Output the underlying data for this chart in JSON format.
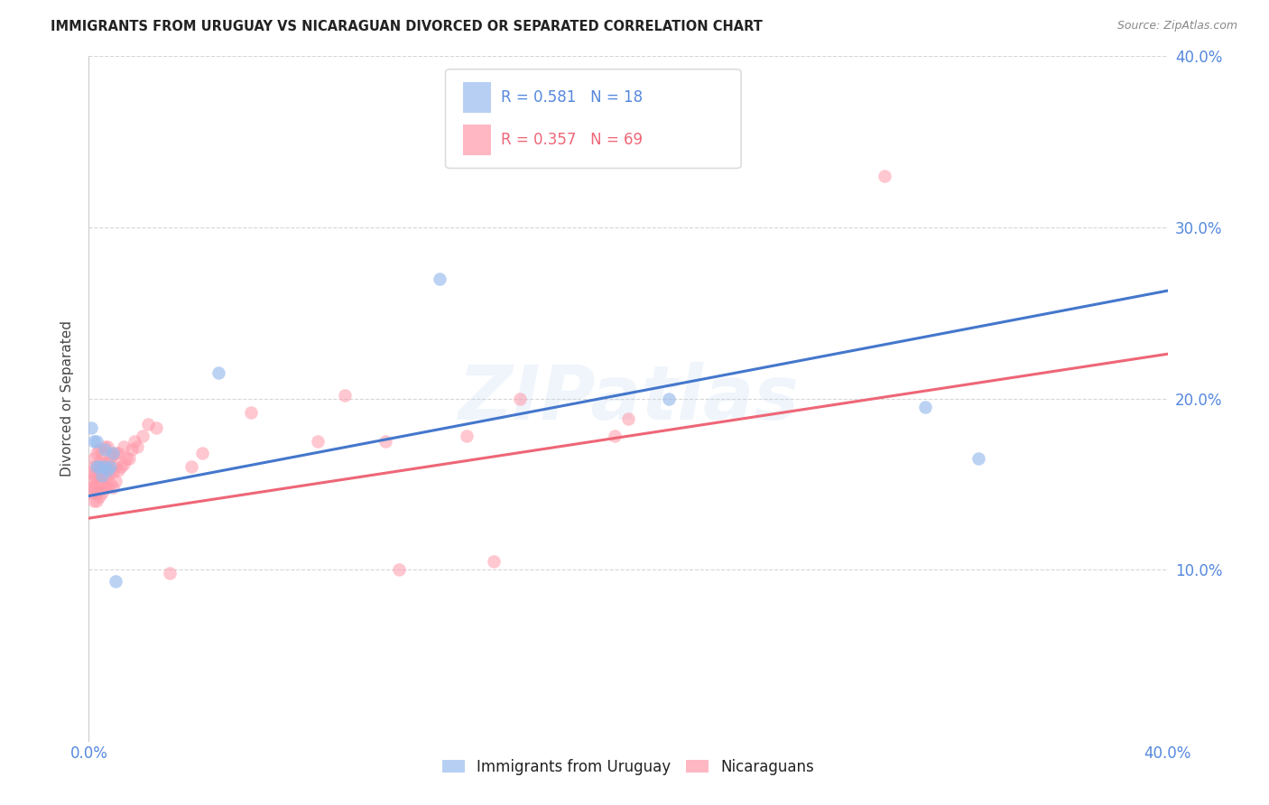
{
  "title": "IMMIGRANTS FROM URUGUAY VS NICARAGUAN DIVORCED OR SEPARATED CORRELATION CHART",
  "source_text": "Source: ZipAtlas.com",
  "ylabel": "Divorced or Separated",
  "xlim": [
    0.0,
    0.4
  ],
  "ylim": [
    0.0,
    0.4
  ],
  "xtick_vals": [
    0.0,
    0.05,
    0.1,
    0.15,
    0.2,
    0.25,
    0.3,
    0.35,
    0.4
  ],
  "ytick_vals": [
    0.1,
    0.2,
    0.3,
    0.4
  ],
  "watermark": "ZIPatlas",
  "blue_color": "#99BBEE",
  "pink_color": "#FF99AA",
  "blue_line_color": "#4477CC",
  "pink_line_color": "#EE6677",
  "background_color": "#FFFFFF",
  "grid_color": "#CCCCCC",
  "title_color": "#222222",
  "ylabel_color": "#444444",
  "tick_color": "#5588DD",
  "source_color": "#888888",
  "legend_box_color": "#DDDDDD",
  "uruguay_x": [
    0.001,
    0.002,
    0.003,
    0.003,
    0.004,
    0.005,
    0.006,
    0.006,
    0.007,
    0.008,
    0.009,
    0.01,
    0.048,
    0.13,
    0.215,
    0.31,
    0.33
  ],
  "uruguay_y": [
    0.183,
    0.175,
    0.175,
    0.16,
    0.16,
    0.155,
    0.16,
    0.17,
    0.158,
    0.16,
    0.168,
    0.093,
    0.215,
    0.27,
    0.2,
    0.195,
    0.165
  ],
  "nicaragua_x": [
    0.001,
    0.001,
    0.001,
    0.001,
    0.002,
    0.002,
    0.002,
    0.002,
    0.002,
    0.003,
    0.003,
    0.003,
    0.003,
    0.003,
    0.003,
    0.004,
    0.004,
    0.004,
    0.004,
    0.004,
    0.005,
    0.005,
    0.005,
    0.005,
    0.005,
    0.006,
    0.006,
    0.006,
    0.006,
    0.007,
    0.007,
    0.007,
    0.007,
    0.008,
    0.008,
    0.008,
    0.009,
    0.009,
    0.009,
    0.01,
    0.01,
    0.01,
    0.011,
    0.011,
    0.012,
    0.013,
    0.013,
    0.014,
    0.015,
    0.016,
    0.017,
    0.018,
    0.02,
    0.022,
    0.025,
    0.03,
    0.038,
    0.042,
    0.06,
    0.085,
    0.095,
    0.11,
    0.115,
    0.14,
    0.15,
    0.16,
    0.195,
    0.2,
    0.295
  ],
  "nicaragua_y": [
    0.145,
    0.148,
    0.152,
    0.157,
    0.14,
    0.148,
    0.155,
    0.16,
    0.165,
    0.14,
    0.145,
    0.15,
    0.155,
    0.16,
    0.168,
    0.143,
    0.15,
    0.157,
    0.163,
    0.17,
    0.145,
    0.15,
    0.155,
    0.16,
    0.168,
    0.148,
    0.155,
    0.162,
    0.172,
    0.148,
    0.155,
    0.163,
    0.172,
    0.15,
    0.158,
    0.165,
    0.148,
    0.157,
    0.167,
    0.152,
    0.16,
    0.168,
    0.158,
    0.168,
    0.16,
    0.162,
    0.172,
    0.165,
    0.165,
    0.17,
    0.175,
    0.172,
    0.178,
    0.185,
    0.183,
    0.098,
    0.16,
    0.168,
    0.192,
    0.175,
    0.202,
    0.175,
    0.1,
    0.178,
    0.105,
    0.2,
    0.178,
    0.188,
    0.33
  ],
  "blue_intercept": 0.143,
  "blue_slope": 0.3,
  "pink_intercept": 0.13,
  "pink_slope": 0.24
}
